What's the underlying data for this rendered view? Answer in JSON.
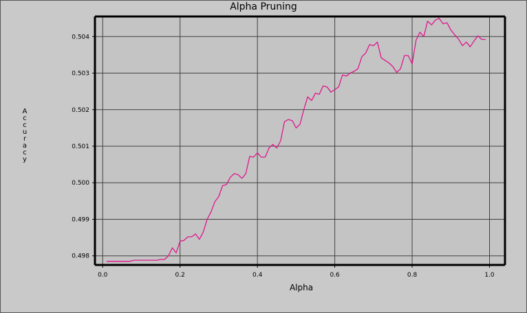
{
  "chart_data": {
    "type": "line",
    "title": "Alpha Pruning",
    "xlabel": "Alpha",
    "ylabel": "Accuracy",
    "xlim": [
      -0.02,
      1.04
    ],
    "ylim": [
      0.49775,
      0.50455
    ],
    "xticks": [
      0.0,
      0.2,
      0.4,
      0.6,
      0.8,
      1.0
    ],
    "xtick_labels": [
      "0.0",
      "0.2",
      "0.4",
      "0.6",
      "0.8",
      "1.0"
    ],
    "yticks": [
      0.498,
      0.499,
      0.5,
      0.501,
      0.502,
      0.503,
      0.504
    ],
    "ytick_labels": [
      "0.498",
      "0.499",
      "0.500",
      "0.501",
      "0.502",
      "0.503",
      "0.504"
    ],
    "grid": true,
    "line_color": "#e0168c",
    "series": [
      {
        "x": [
          0.01,
          0.02,
          0.03,
          0.04,
          0.05,
          0.06,
          0.07,
          0.08,
          0.09,
          0.1,
          0.11,
          0.12,
          0.13,
          0.14,
          0.15,
          0.16,
          0.17,
          0.18,
          0.19,
          0.2,
          0.21,
          0.22,
          0.23,
          0.24,
          0.25,
          0.26,
          0.27,
          0.28,
          0.29,
          0.3,
          0.31,
          0.32,
          0.33,
          0.34,
          0.35,
          0.36,
          0.37,
          0.38,
          0.39,
          0.4,
          0.41,
          0.42,
          0.43,
          0.44,
          0.45,
          0.46,
          0.47,
          0.48,
          0.49,
          0.5,
          0.51,
          0.52,
          0.53,
          0.54,
          0.55,
          0.56,
          0.57,
          0.58,
          0.59,
          0.6,
          0.61,
          0.62,
          0.63,
          0.64,
          0.65,
          0.66,
          0.67,
          0.68,
          0.69,
          0.7,
          0.71,
          0.72,
          0.73,
          0.74,
          0.75,
          0.76,
          0.77,
          0.78,
          0.79,
          0.8,
          0.81,
          0.82,
          0.83,
          0.84,
          0.85,
          0.86,
          0.87,
          0.88,
          0.89,
          0.9,
          0.91,
          0.92,
          0.93,
          0.94,
          0.95,
          0.96,
          0.97,
          0.98,
          0.99
        ],
        "values": [
          0.49785,
          0.49785,
          0.49785,
          0.49785,
          0.49785,
          0.49785,
          0.49785,
          0.49788,
          0.49788,
          0.49788,
          0.49788,
          0.49788,
          0.49788,
          0.49788,
          0.4979,
          0.4979,
          0.498,
          0.49822,
          0.49808,
          0.4984,
          0.49842,
          0.49852,
          0.49852,
          0.4986,
          0.49845,
          0.49865,
          0.499,
          0.4992,
          0.49948,
          0.49962,
          0.49992,
          0.49995,
          0.50015,
          0.50025,
          0.50022,
          0.50012,
          0.50025,
          0.50072,
          0.5007,
          0.50082,
          0.5007,
          0.5007,
          0.50095,
          0.50105,
          0.50095,
          0.50115,
          0.50167,
          0.50173,
          0.5017,
          0.5015,
          0.5016,
          0.502,
          0.50235,
          0.50225,
          0.50245,
          0.50242,
          0.50265,
          0.50262,
          0.50248,
          0.50255,
          0.50262,
          0.50295,
          0.50292,
          0.503,
          0.50305,
          0.50312,
          0.50345,
          0.50355,
          0.50378,
          0.50375,
          0.50385,
          0.50342,
          0.50335,
          0.50328,
          0.50318,
          0.50302,
          0.50312,
          0.50348,
          0.50348,
          0.50325,
          0.5039,
          0.50412,
          0.504,
          0.50442,
          0.50432,
          0.50445,
          0.5045,
          0.50435,
          0.50438,
          0.50418,
          0.50405,
          0.50393,
          0.50375,
          0.50385,
          0.50372,
          0.50388,
          0.50402,
          0.50392,
          0.50392
        ]
      }
    ]
  }
}
